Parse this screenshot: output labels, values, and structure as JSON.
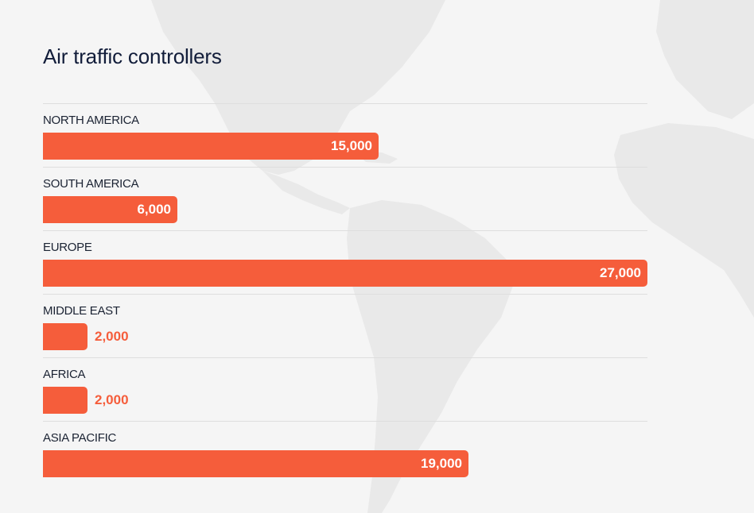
{
  "chart_data": {
    "type": "bar",
    "orientation": "horizontal",
    "title": "Air traffic controllers",
    "categories": [
      "NORTH AMERICA",
      "SOUTH AMERICA",
      "EUROPE",
      "MIDDLE EAST",
      "AFRICA",
      "ASIA PACIFIC"
    ],
    "values": [
      15000,
      6000,
      27000,
      2000,
      2000,
      19000
    ],
    "value_labels": [
      "15,000",
      "6,000",
      "27,000",
      "2,000",
      "2,000",
      "19,000"
    ],
    "xlim": [
      0,
      27000
    ],
    "grid": false,
    "bar_color": "#f55d3b"
  },
  "colors": {
    "background": "#f5f5f5",
    "map": "#e9e9e9",
    "title": "#121d3a",
    "label": "#1b2333",
    "bar": "#f55d3b",
    "divider": "#dedede"
  }
}
